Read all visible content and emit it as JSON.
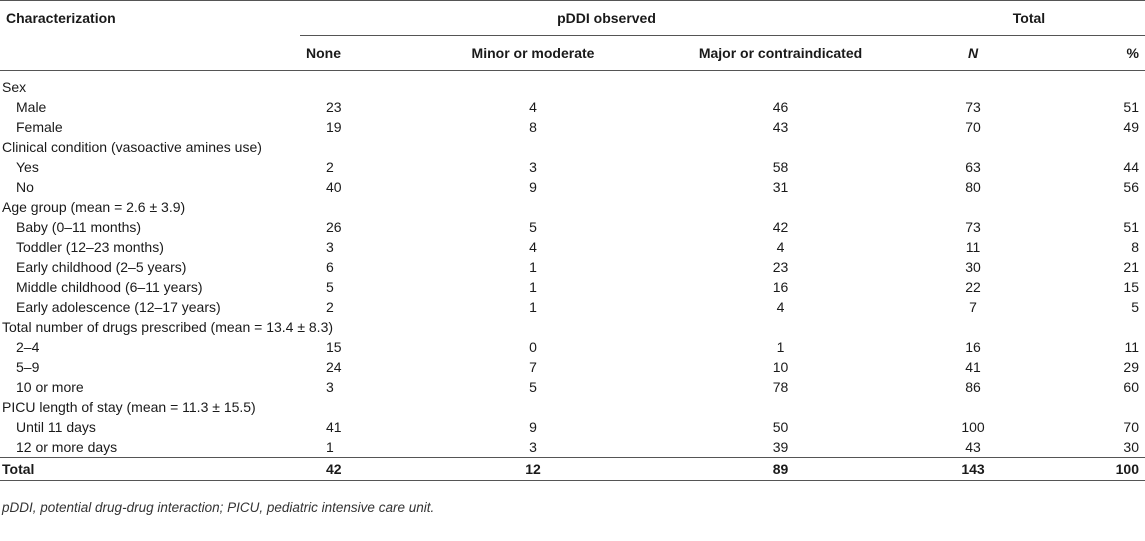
{
  "header": {
    "col_char": "Characterization",
    "group_pddi": "pDDI observed",
    "group_total": "Total",
    "none": "None",
    "minor": "Minor or moderate",
    "major": "Major or contraindicated",
    "n": "N",
    "pct": "%"
  },
  "sections": [
    {
      "title": "Sex",
      "rows": [
        {
          "label": "Male",
          "none": "23",
          "minor": "4",
          "major": "46",
          "n": "73",
          "pct": "51"
        },
        {
          "label": "Female",
          "none": "19",
          "minor": "8",
          "major": "43",
          "n": "70",
          "pct": "49"
        }
      ]
    },
    {
      "title": "Clinical condition (vasoactive amines use)",
      "rows": [
        {
          "label": "Yes",
          "none": "2",
          "minor": "3",
          "major": "58",
          "n": "63",
          "pct": "44"
        },
        {
          "label": "No",
          "none": "40",
          "minor": "9",
          "major": "31",
          "n": "80",
          "pct": "56"
        }
      ]
    },
    {
      "title": "Age group (mean = 2.6 ± 3.9)",
      "rows": [
        {
          "label": "Baby (0–11 months)",
          "none": "26",
          "minor": "5",
          "major": "42",
          "n": "73",
          "pct": "51"
        },
        {
          "label": "Toddler (12–23 months)",
          "none": "3",
          "minor": "4",
          "major": "4",
          "n": "11",
          "pct": "8"
        },
        {
          "label": "Early childhood (2–5 years)",
          "none": "6",
          "minor": "1",
          "major": "23",
          "n": "30",
          "pct": "21"
        },
        {
          "label": "Middle childhood (6–11 years)",
          "none": "5",
          "minor": "1",
          "major": "16",
          "n": "22",
          "pct": "15"
        },
        {
          "label": "Early adolescence (12–17 years)",
          "none": "2",
          "minor": "1",
          "major": "4",
          "n": "7",
          "pct": "5"
        }
      ]
    },
    {
      "title": "Total number of drugs prescribed (mean = 13.4 ± 8.3)",
      "rows": [
        {
          "label": "2–4",
          "none": "15",
          "minor": "0",
          "major": "1",
          "n": "16",
          "pct": "11"
        },
        {
          "label": "5–9",
          "none": "24",
          "minor": "7",
          "major": "10",
          "n": "41",
          "pct": "29"
        },
        {
          "label": "10 or more",
          "none": "3",
          "minor": "5",
          "major": "78",
          "n": "86",
          "pct": "60"
        }
      ]
    },
    {
      "title": "PICU length of stay (mean = 11.3 ± 15.5)",
      "rows": [
        {
          "label": "Until 11 days",
          "none": "41",
          "minor": "9",
          "major": "50",
          "n": "100",
          "pct": "70"
        },
        {
          "label": "12 or more days",
          "none": "1",
          "minor": "3",
          "major": "39",
          "n": "43",
          "pct": "30"
        }
      ]
    }
  ],
  "total": {
    "label": "Total",
    "none": "42",
    "minor": "12",
    "major": "89",
    "n": "143",
    "pct": "100"
  },
  "footnote": "pDDI, potential drug-drug interaction; PICU, pediatric intensive care unit."
}
